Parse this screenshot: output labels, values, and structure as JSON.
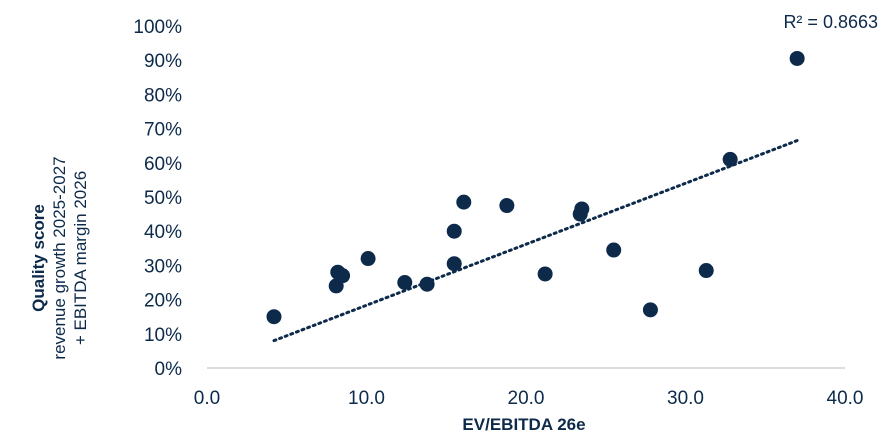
{
  "chart_data": {
    "type": "scatter",
    "color": "#0d2a4a",
    "xlabel": "EV/EBITDA 26e",
    "ylabel_lines": [
      "Quality score",
      "revenue growth 2025-2027",
      "+ EBITDA margin 2026"
    ],
    "xlim": [
      0,
      40
    ],
    "ylim": [
      0,
      1
    ],
    "x_ticks": [
      "0.0",
      "10.0",
      "20.0",
      "30.0",
      "40.0"
    ],
    "y_ticks": [
      "0%",
      "10%",
      "20%",
      "30%",
      "40%",
      "50%",
      "60%",
      "70%",
      "80%",
      "90%",
      "100%"
    ],
    "x_tick_values": [
      0,
      10,
      20,
      30,
      40
    ],
    "y_tick_values": [
      0,
      0.1,
      0.2,
      0.3,
      0.4,
      0.5,
      0.6,
      0.7,
      0.8,
      0.9,
      1.0
    ],
    "points": [
      {
        "x": 4.2,
        "y": 0.15
      },
      {
        "x": 8.1,
        "y": 0.24
      },
      {
        "x": 8.2,
        "y": 0.28
      },
      {
        "x": 8.5,
        "y": 0.27
      },
      {
        "x": 10.1,
        "y": 0.32
      },
      {
        "x": 12.4,
        "y": 0.25
      },
      {
        "x": 13.8,
        "y": 0.245
      },
      {
        "x": 15.5,
        "y": 0.305
      },
      {
        "x": 15.5,
        "y": 0.4
      },
      {
        "x": 16.1,
        "y": 0.485
      },
      {
        "x": 18.8,
        "y": 0.475
      },
      {
        "x": 21.2,
        "y": 0.275
      },
      {
        "x": 23.4,
        "y": 0.45
      },
      {
        "x": 23.5,
        "y": 0.465
      },
      {
        "x": 25.5,
        "y": 0.345
      },
      {
        "x": 27.8,
        "y": 0.17
      },
      {
        "x": 31.3,
        "y": 0.285
      },
      {
        "x": 32.8,
        "y": 0.61
      },
      {
        "x": 37.0,
        "y": 0.905
      }
    ],
    "trendline": {
      "x": [
        4.2,
        37.0
      ],
      "y": [
        0.08,
        0.665
      ],
      "style": "dotted"
    },
    "annotation": "R² = 0.8663"
  }
}
